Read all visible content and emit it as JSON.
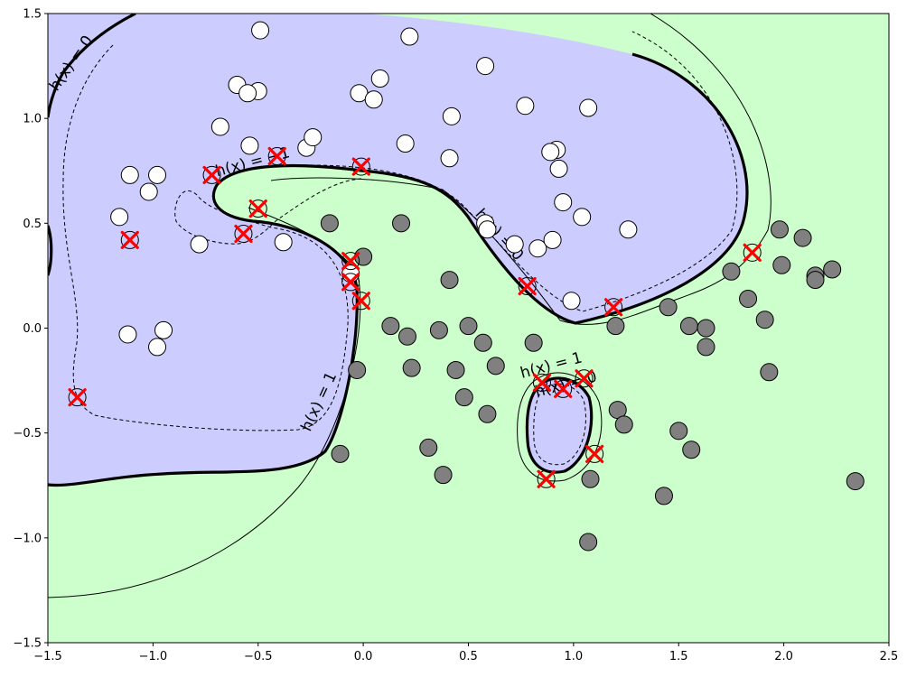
{
  "chart_data": {
    "type": "scatter",
    "title": "",
    "xlabel": "",
    "ylabel": "",
    "xlim": [
      -1.5,
      2.5
    ],
    "ylim": [
      -1.5,
      1.5
    ],
    "x_ticks": [
      -1.5,
      -1.0,
      -0.5,
      0.0,
      0.5,
      1.0,
      1.5,
      2.0,
      2.5
    ],
    "y_ticks": [
      -1.5,
      -1.0,
      -0.5,
      0.0,
      0.5,
      1.0,
      1.5
    ],
    "x_tick_labels": [
      "−1.5",
      "−1.0",
      "−0.5",
      "0.0",
      "0.5",
      "1.0",
      "1.5",
      "2.0",
      "2.5"
    ],
    "y_tick_labels": [
      "−1.5",
      "−1.0",
      "−0.5",
      "0.0",
      "0.5",
      "1.0",
      "1.5"
    ],
    "grid": false,
    "colors": {
      "positive_region": "#ccccff",
      "negative_region": "#ccffcc",
      "class_a_point": "#ffffff",
      "class_b_point": "#808080",
      "support_vector_marker": "#ff0000",
      "contour": "#000000"
    },
    "contour_labels": [
      {
        "text": "h(x) = 0",
        "x": -1.37,
        "y": 1.25,
        "angle": -55
      },
      {
        "text": "h(x) = −1",
        "x": -0.52,
        "y": 0.77,
        "angle": -15
      },
      {
        "text": "h(x) = 0",
        "x": 0.63,
        "y": 0.43,
        "angle": 48
      },
      {
        "text": "h(x) = 1",
        "x": -0.19,
        "y": -0.36,
        "angle": -65
      },
      {
        "text": "h(x) = 1",
        "x": 0.9,
        "y": -0.2,
        "angle": -15
      },
      {
        "text": "h(x) = 0",
        "x": 0.97,
        "y": -0.29,
        "angle": -15
      }
    ],
    "series": [
      {
        "marker": "white-circle",
        "points": [
          [
            -0.49,
            1.42
          ],
          [
            0.22,
            1.39
          ],
          [
            -0.6,
            1.16
          ],
          [
            -0.5,
            1.13
          ],
          [
            -0.55,
            1.12
          ],
          [
            0.58,
            1.25
          ],
          [
            -0.02,
            1.12
          ],
          [
            0.08,
            1.19
          ],
          [
            0.05,
            1.09
          ],
          [
            -0.68,
            0.96
          ],
          [
            0.42,
            1.01
          ],
          [
            0.77,
            1.06
          ],
          [
            1.07,
            1.05
          ],
          [
            -0.27,
            0.86
          ],
          [
            -0.24,
            0.91
          ],
          [
            -0.54,
            0.87
          ],
          [
            0.2,
            0.88
          ],
          [
            0.41,
            0.81
          ],
          [
            0.92,
            0.85
          ],
          [
            0.89,
            0.84
          ],
          [
            0.93,
            0.76
          ],
          [
            -1.11,
            0.73
          ],
          [
            -0.98,
            0.73
          ],
          [
            -1.02,
            0.65
          ],
          [
            0.95,
            0.6
          ],
          [
            -1.16,
            0.53
          ],
          [
            1.04,
            0.53
          ],
          [
            0.58,
            0.5
          ],
          [
            0.59,
            0.47
          ],
          [
            1.26,
            0.47
          ],
          [
            0.72,
            0.4
          ],
          [
            0.83,
            0.38
          ],
          [
            0.9,
            0.42
          ],
          [
            -0.78,
            0.4
          ],
          [
            -0.38,
            0.41
          ],
          [
            -0.06,
            0.26
          ],
          [
            0.99,
            0.13
          ],
          [
            -0.95,
            -0.01
          ],
          [
            -1.12,
            -0.03
          ],
          [
            -0.98,
            -0.09
          ]
        ]
      },
      {
        "marker": "gray-circle",
        "points": [
          [
            -0.16,
            0.5
          ],
          [
            0.18,
            0.5
          ],
          [
            0.0,
            0.34
          ],
          [
            0.41,
            0.23
          ],
          [
            1.98,
            0.47
          ],
          [
            2.09,
            0.43
          ],
          [
            1.75,
            0.27
          ],
          [
            1.99,
            0.3
          ],
          [
            2.15,
            0.25
          ],
          [
            2.23,
            0.28
          ],
          [
            2.15,
            0.23
          ],
          [
            1.45,
            0.1
          ],
          [
            1.83,
            0.14
          ],
          [
            1.2,
            0.01
          ],
          [
            1.55,
            0.01
          ],
          [
            1.63,
            0.0
          ],
          [
            1.91,
            0.04
          ],
          [
            0.13,
            0.01
          ],
          [
            0.21,
            -0.04
          ],
          [
            0.36,
            -0.01
          ],
          [
            0.5,
            0.01
          ],
          [
            0.57,
            -0.07
          ],
          [
            0.81,
            -0.07
          ],
          [
            1.63,
            -0.09
          ],
          [
            -0.03,
            -0.2
          ],
          [
            0.23,
            -0.19
          ],
          [
            0.44,
            -0.2
          ],
          [
            0.63,
            -0.18
          ],
          [
            1.93,
            -0.21
          ],
          [
            0.48,
            -0.33
          ],
          [
            0.59,
            -0.41
          ],
          [
            1.21,
            -0.39
          ],
          [
            1.24,
            -0.46
          ],
          [
            1.5,
            -0.49
          ],
          [
            1.56,
            -0.58
          ],
          [
            0.31,
            -0.57
          ],
          [
            0.38,
            -0.7
          ],
          [
            -0.11,
            -0.6
          ],
          [
            1.08,
            -0.72
          ],
          [
            2.34,
            -0.73
          ],
          [
            1.43,
            -0.8
          ],
          [
            1.07,
            -1.02
          ]
        ]
      },
      {
        "marker": "red-x-support-vectors",
        "points": [
          [
            -0.72,
            0.73
          ],
          [
            -0.41,
            0.82
          ],
          [
            -0.01,
            0.77
          ],
          [
            -0.5,
            0.57
          ],
          [
            -0.57,
            0.45
          ],
          [
            -1.11,
            0.42
          ],
          [
            -0.06,
            0.32
          ],
          [
            -0.06,
            0.22
          ],
          [
            -0.01,
            0.13
          ],
          [
            0.78,
            0.2
          ],
          [
            1.19,
            0.1
          ],
          [
            1.85,
            0.36
          ],
          [
            -1.36,
            -0.33
          ],
          [
            0.85,
            -0.26
          ],
          [
            0.95,
            -0.29
          ],
          [
            1.05,
            -0.24
          ],
          [
            1.1,
            -0.6
          ],
          [
            0.87,
            -0.72
          ]
        ]
      }
    ]
  }
}
